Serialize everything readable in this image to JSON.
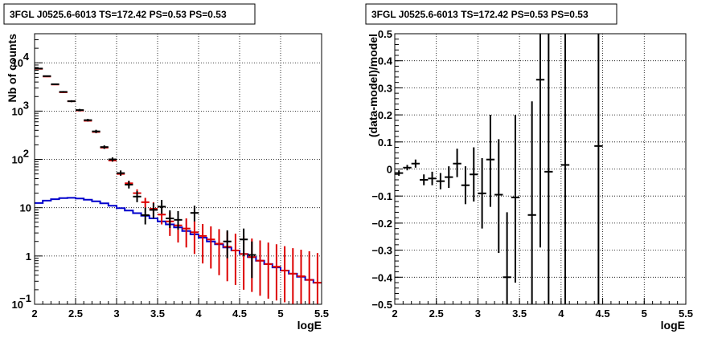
{
  "chart_data": [
    {
      "type": "scatter",
      "title": "3FGL J0525.6-6013 TS=172.42 PS=0.53 PS=0.53",
      "xlabel": "logE",
      "ylabel": "Nb of counts",
      "xlim": [
        2,
        5.5
      ],
      "ylim": [
        0.1,
        40000
      ],
      "yscale": "log",
      "grid": true,
      "x_ticks": [
        "2",
        "2.5",
        "3",
        "3.5",
        "4",
        "4.5",
        "5",
        "5.5"
      ],
      "y_ticks": [
        {
          "value": 0.1,
          "base": "10",
          "exp": "−1"
        },
        {
          "value": 1,
          "base": "1",
          "exp": ""
        },
        {
          "value": 10,
          "base": "10",
          "exp": ""
        },
        {
          "value": 100,
          "base": "10",
          "exp": "2"
        },
        {
          "value": 1000,
          "base": "10",
          "exp": "3"
        },
        {
          "value": 10000,
          "base": "10",
          "exp": "4"
        }
      ],
      "colors": {
        "data": "#000000",
        "model": "#dd0000",
        "background": "#0000cc"
      },
      "series": [
        {
          "role": "data",
          "points": [
            {
              "x": 2.05,
              "y": 7600,
              "ylo": 7400,
              "yhi": 7800
            },
            {
              "x": 2.15,
              "y": 5300,
              "ylo": 5150,
              "yhi": 5450
            },
            {
              "x": 2.25,
              "y": 3600,
              "ylo": 3480,
              "yhi": 3720
            },
            {
              "x": 2.35,
              "y": 2500,
              "ylo": 2400,
              "yhi": 2600
            },
            {
              "x": 2.45,
              "y": 1600,
              "ylo": 1530,
              "yhi": 1680
            },
            {
              "x": 2.55,
              "y": 1050,
              "ylo": 990,
              "yhi": 1110
            },
            {
              "x": 2.65,
              "y": 650,
              "ylo": 610,
              "yhi": 690
            },
            {
              "x": 2.75,
              "y": 380,
              "ylo": 350,
              "yhi": 410
            },
            {
              "x": 2.85,
              "y": 180,
              "ylo": 165,
              "yhi": 195
            },
            {
              "x": 2.95,
              "y": 100,
              "ylo": 90,
              "yhi": 110
            },
            {
              "x": 3.05,
              "y": 52,
              "ylo": 46,
              "yhi": 59
            },
            {
              "x": 3.15,
              "y": 30,
              "ylo": 25,
              "yhi": 36
            },
            {
              "x": 3.25,
              "y": 17,
              "ylo": 13,
              "yhi": 22
            },
            {
              "x": 3.35,
              "y": 7,
              "ylo": 4.5,
              "yhi": 10
            },
            {
              "x": 3.45,
              "y": 9,
              "ylo": 6,
              "yhi": 12.5
            },
            {
              "x": 3.55,
              "y": 10.5,
              "ylo": 7.5,
              "yhi": 14.5
            },
            {
              "x": 3.65,
              "y": 6,
              "ylo": 3.8,
              "yhi": 8.8
            },
            {
              "x": 3.75,
              "y": 5.6,
              "ylo": 3.5,
              "yhi": 8.5
            },
            {
              "x": 3.95,
              "y": 7.8,
              "ylo": 5.2,
              "yhi": 11
            },
            {
              "x": 4.35,
              "y": 2.0,
              "ylo": 0.9,
              "yhi": 3.4
            },
            {
              "x": 4.55,
              "y": 2.2,
              "ylo": 1.0,
              "yhi": 3.7
            },
            {
              "x": 4.65,
              "y": 1.05,
              "ylo": 0.35,
              "yhi": 2.0
            }
          ]
        },
        {
          "role": "model",
          "points": [
            {
              "x": 2.05,
              "y": 7500,
              "ylo": 7400,
              "yhi": 7600
            },
            {
              "x": 2.15,
              "y": 5200,
              "ylo": 5130,
              "yhi": 5270
            },
            {
              "x": 2.25,
              "y": 3550,
              "ylo": 3500,
              "yhi": 3600
            },
            {
              "x": 2.35,
              "y": 2450,
              "ylo": 2410,
              "yhi": 2490
            },
            {
              "x": 2.45,
              "y": 1600,
              "ylo": 1570,
              "yhi": 1630
            },
            {
              "x": 2.55,
              "y": 1030,
              "ylo": 1010,
              "yhi": 1050
            },
            {
              "x": 2.65,
              "y": 630,
              "ylo": 615,
              "yhi": 645
            },
            {
              "x": 2.75,
              "y": 370,
              "ylo": 360,
              "yhi": 380
            },
            {
              "x": 2.85,
              "y": 175,
              "ylo": 168,
              "yhi": 182
            },
            {
              "x": 2.95,
              "y": 95,
              "ylo": 90,
              "yhi": 100
            },
            {
              "x": 3.05,
              "y": 50,
              "ylo": 46,
              "yhi": 54
            },
            {
              "x": 3.15,
              "y": 32,
              "ylo": 28,
              "yhi": 36
            },
            {
              "x": 3.25,
              "y": 20,
              "ylo": 16,
              "yhi": 24
            },
            {
              "x": 3.35,
              "y": 13,
              "ylo": 10,
              "yhi": 16
            },
            {
              "x": 3.45,
              "y": 9.5,
              "ylo": 6.5,
              "yhi": 13
            },
            {
              "x": 3.55,
              "y": 7.2,
              "ylo": 4.5,
              "yhi": 10
            },
            {
              "x": 3.65,
              "y": 5.2,
              "ylo": 2.6,
              "yhi": 8
            },
            {
              "x": 3.75,
              "y": 4.3,
              "ylo": 1.9,
              "yhi": 6.8
            },
            {
              "x": 3.85,
              "y": 3.7,
              "ylo": 1.5,
              "yhi": 6
            },
            {
              "x": 3.95,
              "y": 3.1,
              "ylo": 1.1,
              "yhi": 5.3
            },
            {
              "x": 4.05,
              "y": 2.6,
              "ylo": 0.7,
              "yhi": 4.6
            },
            {
              "x": 4.15,
              "y": 2.2,
              "ylo": 0.55,
              "yhi": 4.1
            },
            {
              "x": 4.25,
              "y": 1.8,
              "ylo": 0.4,
              "yhi": 3.6
            },
            {
              "x": 4.35,
              "y": 1.55,
              "ylo": 0.3,
              "yhi": 3.2
            },
            {
              "x": 4.45,
              "y": 1.3,
              "ylo": 0.25,
              "yhi": 2.9
            },
            {
              "x": 4.55,
              "y": 1.1,
              "ylo": 0.2,
              "yhi": 2.6
            },
            {
              "x": 4.65,
              "y": 0.95,
              "ylo": 0.18,
              "yhi": 2.3
            },
            {
              "x": 4.75,
              "y": 0.8,
              "ylo": 0.15,
              "yhi": 2.1
            },
            {
              "x": 4.85,
              "y": 0.68,
              "ylo": 0.13,
              "yhi": 1.9
            },
            {
              "x": 4.95,
              "y": 0.6,
              "ylo": 0.12,
              "yhi": 1.75
            },
            {
              "x": 5.05,
              "y": 0.5,
              "ylo": 0.11,
              "yhi": 1.6
            },
            {
              "x": 5.15,
              "y": 0.43,
              "ylo": 0.1,
              "yhi": 1.45
            },
            {
              "x": 5.25,
              "y": 0.38,
              "ylo": 0.1,
              "yhi": 1.35
            },
            {
              "x": 5.35,
              "y": 0.32,
              "ylo": 0.1,
              "yhi": 1.25
            },
            {
              "x": 5.45,
              "y": 0.28,
              "ylo": 0.1,
              "yhi": 1.15
            }
          ]
        },
        {
          "role": "background",
          "bin_edges": [
            2.0,
            2.1,
            2.2,
            2.3,
            2.4,
            2.5,
            2.6,
            2.7,
            2.8,
            2.9,
            3.0,
            3.1,
            3.2,
            3.3,
            3.4,
            3.5,
            3.6,
            3.7,
            3.8,
            3.9,
            4.0,
            4.1,
            4.2,
            4.3,
            4.4,
            4.5,
            4.6,
            4.7,
            4.8,
            4.9,
            5.0,
            5.1,
            5.2,
            5.3,
            5.4,
            5.5
          ],
          "values": [
            12.5,
            14,
            15,
            15.8,
            16,
            15.5,
            14.6,
            13.5,
            12.3,
            11,
            9.8,
            8.7,
            7.7,
            6.8,
            6.0,
            5.2,
            4.5,
            3.9,
            3.3,
            2.8,
            2.4,
            2.0,
            1.75,
            1.5,
            1.3,
            1.1,
            0.95,
            0.8,
            0.68,
            0.58,
            0.5,
            0.43,
            0.37,
            0.32,
            0.28
          ]
        }
      ]
    },
    {
      "type": "scatter",
      "title": "3FGL J0525.6-6013 TS=172.42 PS=0.53 PS=0.53",
      "xlabel": "logE",
      "ylabel": "(data-model)/model",
      "xlim": [
        2,
        5.5
      ],
      "ylim": [
        -0.5,
        0.5
      ],
      "grid": true,
      "x_ticks": [
        "2",
        "2.5",
        "3",
        "3.5",
        "4",
        "4.5",
        "5",
        "5.5"
      ],
      "y_ticks": [
        "−0.5",
        "−0.4",
        "−0.3",
        "−0.2",
        "−0.1",
        "0",
        "0.1",
        "0.2",
        "0.3",
        "0.4",
        "0.5"
      ],
      "colors": {
        "data": "#000000"
      },
      "series": [
        {
          "role": "residual",
          "points": [
            {
              "x": 2.05,
              "y": -0.015,
              "ylo": -0.025,
              "yhi": -0.005
            },
            {
              "x": 2.15,
              "y": 0.005,
              "ylo": -0.005,
              "yhi": 0.015
            },
            {
              "x": 2.25,
              "y": 0.02,
              "ylo": 0.005,
              "yhi": 0.035
            },
            {
              "x": 2.35,
              "y": -0.04,
              "ylo": -0.06,
              "yhi": -0.02
            },
            {
              "x": 2.45,
              "y": -0.035,
              "ylo": -0.06,
              "yhi": -0.01
            },
            {
              "x": 2.55,
              "y": -0.045,
              "ylo": -0.075,
              "yhi": -0.015
            },
            {
              "x": 2.65,
              "y": -0.03,
              "ylo": -0.07,
              "yhi": 0.01
            },
            {
              "x": 2.75,
              "y": 0.02,
              "ylo": -0.03,
              "yhi": 0.075
            },
            {
              "x": 2.85,
              "y": -0.06,
              "ylo": -0.13,
              "yhi": 0.01
            },
            {
              "x": 2.95,
              "y": -0.02,
              "ylo": -0.12,
              "yhi": 0.08
            },
            {
              "x": 3.05,
              "y": -0.09,
              "ylo": -0.22,
              "yhi": 0.04
            },
            {
              "x": 3.15,
              "y": 0.035,
              "ylo": -0.14,
              "yhi": 0.2
            },
            {
              "x": 3.25,
              "y": -0.095,
              "ylo": -0.31,
              "yhi": 0.11
            },
            {
              "x": 3.35,
              "y": -0.4,
              "ylo": -0.5,
              "yhi": -0.16
            },
            {
              "x": 3.45,
              "y": -0.105,
              "ylo": -0.42,
              "yhi": 0.2
            },
            {
              "x": 3.65,
              "y": -0.17,
              "ylo": -0.5,
              "yhi": 0.25
            },
            {
              "x": 3.75,
              "y": 0.33,
              "ylo": -0.29,
              "yhi": 0.5
            },
            {
              "x": 3.85,
              "y": -0.01,
              "ylo": -0.5,
              "yhi": 0.5
            },
            {
              "x": 4.05,
              "y": 0.015,
              "ylo": -0.5,
              "yhi": 0.5
            },
            {
              "x": 4.45,
              "y": 0.085,
              "ylo": -0.5,
              "yhi": 0.5
            }
          ]
        }
      ]
    }
  ]
}
